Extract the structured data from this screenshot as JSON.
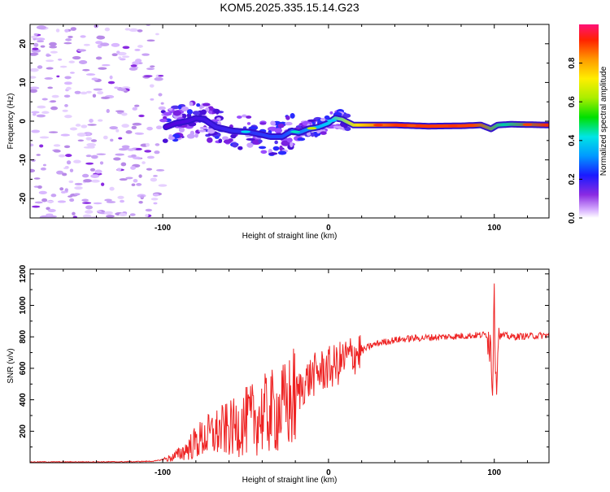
{
  "title": "KOM5.2025.335.15.14.G23",
  "colors": {
    "snr_line": "#ee2222",
    "frame": "#000000"
  },
  "chart_data": [
    {
      "type": "heatmap",
      "name": "spectrogram",
      "xlabel": "Height of straight line (km)",
      "ylabel": "Frequency (Hz)",
      "xlim": [
        -180,
        133
      ],
      "ylim": [
        -25,
        25
      ],
      "xticks": [
        -100,
        0,
        100
      ],
      "yticks": [
        -20,
        -10,
        0,
        10,
        20
      ],
      "colorbar": {
        "label": "Normalized spectral amplitude",
        "range": [
          0,
          1
        ],
        "ticks": [
          "0.0",
          "0.2",
          "0.4",
          "0.6",
          "0.8"
        ],
        "tick_values": [
          0,
          0.2,
          0.4,
          0.6,
          0.8
        ]
      },
      "ridge_frequency_hz": [
        [
          -98,
          -1.5
        ],
        [
          -92,
          -0.5
        ],
        [
          -85,
          0.0
        ],
        [
          -80,
          0.8
        ],
        [
          -75,
          0.5
        ],
        [
          -68,
          -1.5
        ],
        [
          -58,
          -2.5
        ],
        [
          -48,
          -2.8
        ],
        [
          -40,
          -3.5
        ],
        [
          -35,
          -4.0
        ],
        [
          -28,
          -4.0
        ],
        [
          -22,
          -2.5
        ],
        [
          -18,
          -3.0
        ],
        [
          -12,
          -2.0
        ],
        [
          -6,
          -1.5
        ],
        [
          0,
          -0.5
        ],
        [
          4,
          0.8
        ],
        [
          8,
          0.5
        ],
        [
          15,
          -1.0
        ],
        [
          40,
          -1.0
        ],
        [
          60,
          -1.3
        ],
        [
          80,
          -1.2
        ],
        [
          92,
          -1.0
        ],
        [
          98,
          -2.0
        ],
        [
          102,
          -1.0
        ],
        [
          110,
          -0.8
        ],
        [
          133,
          -1.0
        ]
      ]
    },
    {
      "type": "line",
      "name": "snr",
      "xlabel": "Height of straight line (km)",
      "ylabel": "SNR (v/v)",
      "xlim": [
        -180,
        133
      ],
      "ylim": [
        0,
        1230
      ],
      "xticks": [
        -100,
        0,
        100
      ],
      "yticks": [
        200,
        400,
        600,
        800,
        1000,
        1200
      ],
      "series": [
        {
          "name": "SNR",
          "x": [
            -180,
            -150,
            -120,
            -105,
            -100,
            -95,
            -90,
            -85,
            -80,
            -75,
            -70,
            -65,
            -60,
            -55,
            -50,
            -45,
            -40,
            -35,
            -30,
            -25,
            -20,
            -15,
            -10,
            -5,
            0,
            5,
            10,
            15,
            20,
            25,
            30,
            35,
            40,
            50,
            60,
            70,
            80,
            90,
            95,
            97,
            98,
            99,
            100,
            101,
            102,
            105,
            110,
            120,
            133
          ],
          "y": [
            5,
            5,
            6,
            10,
            20,
            30,
            55,
            90,
            130,
            160,
            180,
            200,
            210,
            230,
            260,
            280,
            300,
            320,
            330,
            360,
            420,
            500,
            550,
            580,
            600,
            620,
            660,
            690,
            710,
            740,
            760,
            770,
            780,
            790,
            795,
            800,
            805,
            810,
            815,
            800,
            700,
            500,
            1200,
            400,
            800,
            810,
            800,
            805,
            810
          ]
        }
      ]
    }
  ]
}
